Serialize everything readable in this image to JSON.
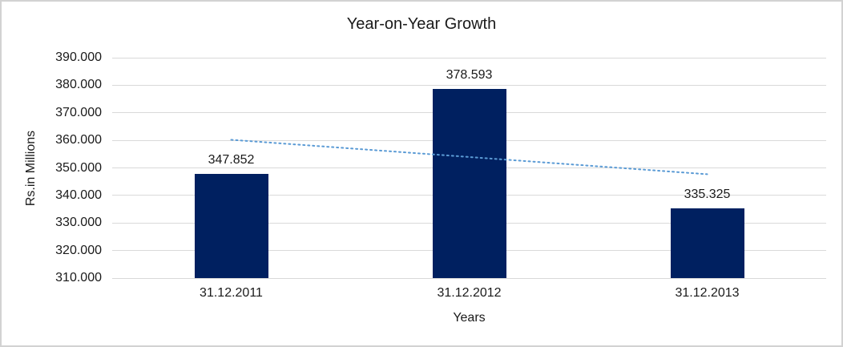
{
  "window": {
    "background": "#ffffff",
    "border_color": "#d2d2d2"
  },
  "chart_data": {
    "type": "bar",
    "title": "Year-on-Year Growth",
    "xlabel": "Years",
    "ylabel": "Rs.in Millions",
    "categories": [
      "31.12.2011",
      "31.12.2012",
      "31.12.2013"
    ],
    "values": [
      347.852,
      378.593,
      335.325
    ],
    "value_labels": [
      "347.852",
      "378.593",
      "335.325"
    ],
    "ylim": [
      310,
      390
    ],
    "ytick_step": 10,
    "ytick_labels": [
      "310.000",
      "320.000",
      "330.000",
      "340.000",
      "350.000",
      "360.000",
      "370.000",
      "380.000",
      "390.000"
    ],
    "grid": true,
    "legend": "none",
    "bar_color": "#002060",
    "gridline_color": "#d9d9d9",
    "text_color": "#1a1a1a",
    "trendline": {
      "type": "linear",
      "style": "dotted",
      "color": "#5b9bd5",
      "start_value": 360.2,
      "end_value": 347.7
    }
  }
}
